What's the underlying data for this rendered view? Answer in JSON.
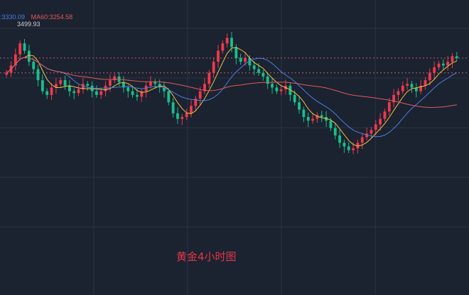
{
  "legend": {
    "ma20_text": "3330.09",
    "ma20_prefix": ":",
    "ma60_text": "MA60:3254.58",
    "ma20_color": "#4a7fe0",
    "ma60_color": "#e05a5a"
  },
  "high_label": "3499.93",
  "caption": "黄金4小时图",
  "colors": {
    "background": "#1b2230",
    "up": "#f0394c",
    "down": "#17c08a",
    "ma_short": "#e8c347",
    "ma_mid": "#4a7fe0",
    "ma_long": "#e05a5a",
    "grid": "#2b3444",
    "ref_line": "#c06060"
  },
  "chart_data": {
    "type": "candlestick",
    "symbol_caption": "黄金4小时图",
    "grid": true,
    "price_range": [
      3000,
      3520
    ],
    "reference_lines": [
      3420,
      3380
    ],
    "highest_marker": 3499.93,
    "legend_values": {
      "MA20": 3330.09,
      "MA60": 3254.58
    },
    "close": [
      3380,
      3400,
      3430,
      3460,
      3440,
      3410,
      3390,
      3360,
      3330,
      3320,
      3340,
      3350,
      3360,
      3345,
      3330,
      3325,
      3335,
      3350,
      3345,
      3330,
      3320,
      3330,
      3345,
      3360,
      3370,
      3355,
      3340,
      3330,
      3320,
      3315,
      3330,
      3345,
      3355,
      3350,
      3340,
      3330,
      3300,
      3270,
      3255,
      3260,
      3270,
      3290,
      3310,
      3330,
      3350,
      3380,
      3410,
      3440,
      3460,
      3475,
      3450,
      3420,
      3410,
      3420,
      3400,
      3390,
      3380,
      3370,
      3350,
      3340,
      3330,
      3335,
      3345,
      3320,
      3300,
      3280,
      3260,
      3250,
      3255,
      3265,
      3260,
      3250,
      3230,
      3210,
      3190,
      3180,
      3170,
      3175,
      3190,
      3205,
      3215,
      3225,
      3240,
      3255,
      3275,
      3300,
      3320,
      3330,
      3345,
      3350,
      3340,
      3330,
      3345,
      3360,
      3380,
      3395,
      3405,
      3400,
      3410,
      3425,
      3420
    ]
  }
}
